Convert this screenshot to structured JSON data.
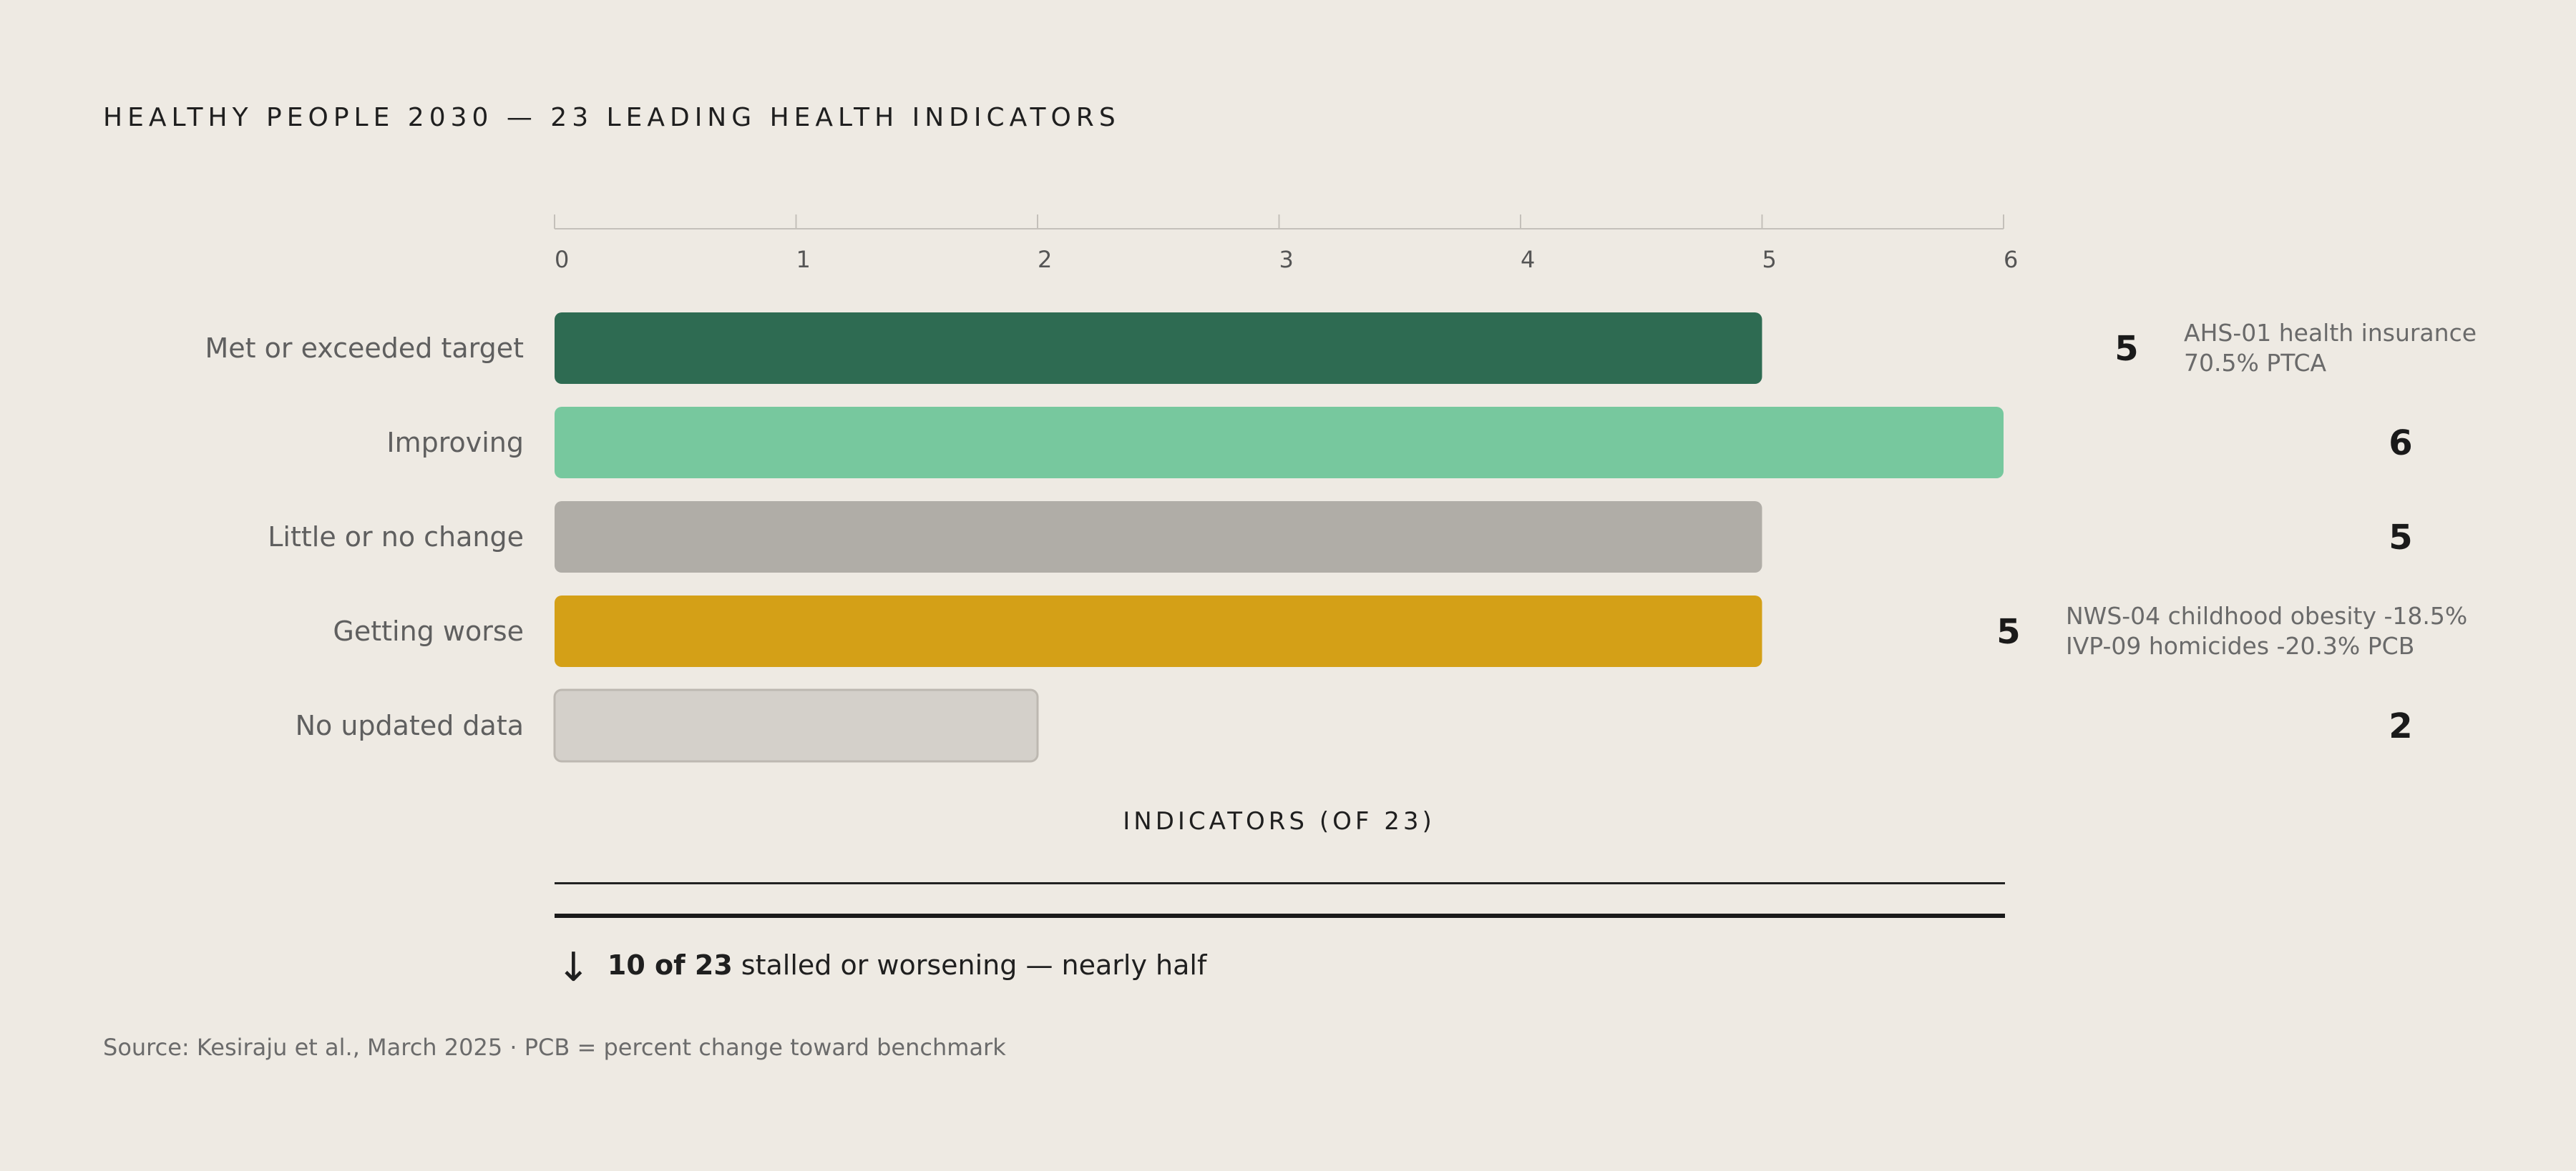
{
  "title": "HEALTHY PEOPLE 2030 — 23 LEADING HEALTH INDICATORS",
  "chart_data": {
    "type": "bar",
    "orientation": "horizontal",
    "categories": [
      "Met or exceeded target",
      "Improving",
      "Little or no change",
      "Getting worse",
      "No updated data"
    ],
    "values": [
      5,
      6,
      5,
      5,
      2
    ],
    "value_labels": [
      "5",
      "6",
      "5",
      "5",
      "2"
    ],
    "colors": [
      "#2E6B52",
      "#77C89E",
      "#B0ADA7",
      "#D4A017",
      "#D4D0CA"
    ],
    "xlabel": "INDICATORS (OF 23)",
    "xlim": [
      0,
      6
    ],
    "xticks": [
      "0",
      "1",
      "2",
      "3",
      "4",
      "5",
      "6"
    ],
    "grid": false,
    "annotations": [
      {
        "category": "Met or exceeded target",
        "lines": [
          "AHS-01 health insurance",
          "70.5% PTCA"
        ]
      },
      {
        "category": "Getting worse",
        "lines": [
          "NWS-04 childhood obesity -18.5%",
          "IVP-09 homicides -20.3% PCB"
        ]
      }
    ]
  },
  "callout": {
    "arrow": "↓",
    "emphasis": "10 of 23",
    "text": "stalled or worsening — nearly half"
  },
  "source": "Source: Kesiraju et al., March 2025 · PCB = percent change toward benchmark"
}
